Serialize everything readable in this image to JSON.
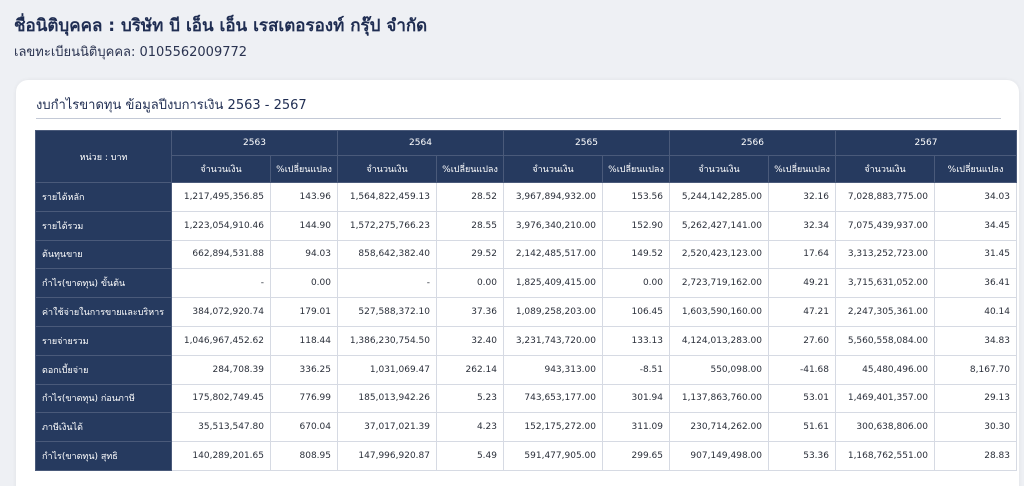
{
  "company_name": "ชื่อนิติบุคคล : บริษัท บี เอ็น เอ็น เรสเตอรองท์ กรุ๊ป จำกัด",
  "registration": "เลขทะเบียนนิติบุคคล: 0105562009772",
  "card_title": "งบกำไรขาดทุน ข้อมูลปีงบการเงิน 2563 - 2567",
  "unit_label": "หน่วย : บาท",
  "years": [
    "2563",
    "2564",
    "2565",
    "2566",
    "2567"
  ],
  "col_amount": "จำนวนเงิน",
  "col_change": "%เปลี่ยนแปลง",
  "rows": [
    {
      "label": "รายได้หลัก",
      "cells": [
        "1,217,495,356.85",
        "143.96",
        "1,564,822,459.13",
        "28.52",
        "3,967,894,932.00",
        "153.56",
        "5,244,142,285.00",
        "32.16",
        "7,028,883,775.00",
        "34.03"
      ]
    },
    {
      "label": "รายได้รวม",
      "cells": [
        "1,223,054,910.46",
        "144.90",
        "1,572,275,766.23",
        "28.55",
        "3,976,340,210.00",
        "152.90",
        "5,262,427,141.00",
        "32.34",
        "7,075,439,937.00",
        "34.45"
      ]
    },
    {
      "label": "ต้นทุนขาย",
      "cells": [
        "662,894,531.88",
        "94.03",
        "858,642,382.40",
        "29.52",
        "2,142,485,517.00",
        "149.52",
        "2,520,423,123.00",
        "17.64",
        "3,313,252,723.00",
        "31.45"
      ]
    },
    {
      "label": "กำไร(ขาดทุน) ขั้นต้น",
      "cells": [
        "-",
        "0.00",
        "-",
        "0.00",
        "1,825,409,415.00",
        "0.00",
        "2,723,719,162.00",
        "49.21",
        "3,715,631,052.00",
        "36.41"
      ]
    },
    {
      "label": "ค่าใช้จ่ายในการขายและบริหาร",
      "cells": [
        "384,072,920.74",
        "179.01",
        "527,588,372.10",
        "37.36",
        "1,089,258,203.00",
        "106.45",
        "1,603,590,160.00",
        "47.21",
        "2,247,305,361.00",
        "40.14"
      ]
    },
    {
      "label": "รายจ่ายรวม",
      "cells": [
        "1,046,967,452.62",
        "118.44",
        "1,386,230,754.50",
        "32.40",
        "3,231,743,720.00",
        "133.13",
        "4,124,013,283.00",
        "27.60",
        "5,560,558,084.00",
        "34.83"
      ]
    },
    {
      "label": "ดอกเบี้ยจ่าย",
      "cells": [
        "284,708.39",
        "336.25",
        "1,031,069.47",
        "262.14",
        "943,313.00",
        "-8.51",
        "550,098.00",
        "-41.68",
        "45,480,496.00",
        "8,167.70"
      ]
    },
    {
      "label": "กำไร(ขาดทุน) ก่อนภาษี",
      "cells": [
        "175,802,749.45",
        "776.99",
        "185,013,942.26",
        "5.23",
        "743,653,177.00",
        "301.94",
        "1,137,863,760.00",
        "53.01",
        "1,469,401,357.00",
        "29.13"
      ]
    },
    {
      "label": "ภาษีเงินได้",
      "cells": [
        "35,513,547.80",
        "670.04",
        "37,017,021.39",
        "4.23",
        "152,175,272.00",
        "311.09",
        "230,714,262.00",
        "51.61",
        "300,638,806.00",
        "30.30"
      ]
    },
    {
      "label": "กำไร(ขาดทุน) สุทธิ",
      "cells": [
        "140,289,201.65",
        "808.95",
        "147,996,920.87",
        "5.49",
        "591,477,905.00",
        "299.65",
        "907,149,498.00",
        "53.36",
        "1,168,762,551.00",
        "28.83"
      ]
    }
  ]
}
